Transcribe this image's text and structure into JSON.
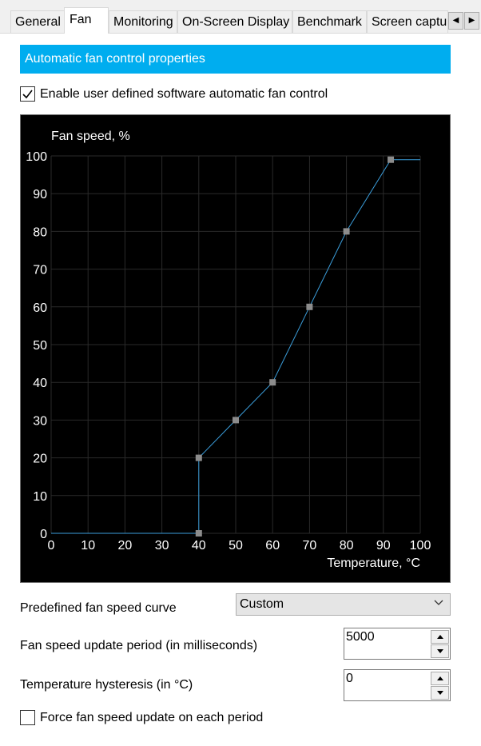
{
  "tabs": [
    {
      "label": "General"
    },
    {
      "label": "Fan"
    },
    {
      "label": "Monitoring"
    },
    {
      "label": "On-Screen Display"
    },
    {
      "label": "Benchmark"
    },
    {
      "label": "Screen captu"
    }
  ],
  "active_tab": "Fan",
  "tab_scroll": {
    "left_icon": "left-arrow-icon",
    "right_icon": "right-arrow-icon"
  },
  "section_title": "Automatic fan control properties",
  "enable_auto": {
    "label": "Enable user defined software automatic fan control",
    "checked": true
  },
  "colors": {
    "accent": "#00adef",
    "curve": "#3b9edb",
    "point": "#8c8c8c",
    "grid": "#2a2a2a"
  },
  "chart_data": {
    "type": "line",
    "title": "",
    "ylabel": "Fan speed, %",
    "xlabel": "Temperature, °C",
    "xlim": [
      0,
      100
    ],
    "ylim": [
      0,
      100
    ],
    "x_ticks": [
      0,
      10,
      20,
      30,
      40,
      50,
      60,
      70,
      80,
      90,
      100
    ],
    "y_ticks": [
      0,
      10,
      20,
      30,
      40,
      50,
      60,
      70,
      80,
      90,
      100
    ],
    "grid": true,
    "curve": [
      [
        0,
        0
      ],
      [
        40,
        0
      ],
      [
        40,
        20
      ],
      [
        50,
        30
      ],
      [
        60,
        40
      ],
      [
        70,
        60
      ],
      [
        80,
        80
      ],
      [
        92,
        99
      ],
      [
        100,
        99
      ]
    ],
    "control_points": [
      [
        40,
        0
      ],
      [
        40,
        20
      ],
      [
        50,
        30
      ],
      [
        60,
        40
      ],
      [
        70,
        60
      ],
      [
        80,
        80
      ],
      [
        92,
        99
      ]
    ]
  },
  "predefined_curve": {
    "label": "Predefined fan speed curve",
    "value": "Custom"
  },
  "update_period": {
    "label": "Fan speed update period (in milliseconds)",
    "value": "5000"
  },
  "hysteresis": {
    "label": "Temperature hysteresis (in °C)",
    "value": "0"
  },
  "force_update": {
    "label": "Force fan speed update on each period",
    "checked": false
  }
}
